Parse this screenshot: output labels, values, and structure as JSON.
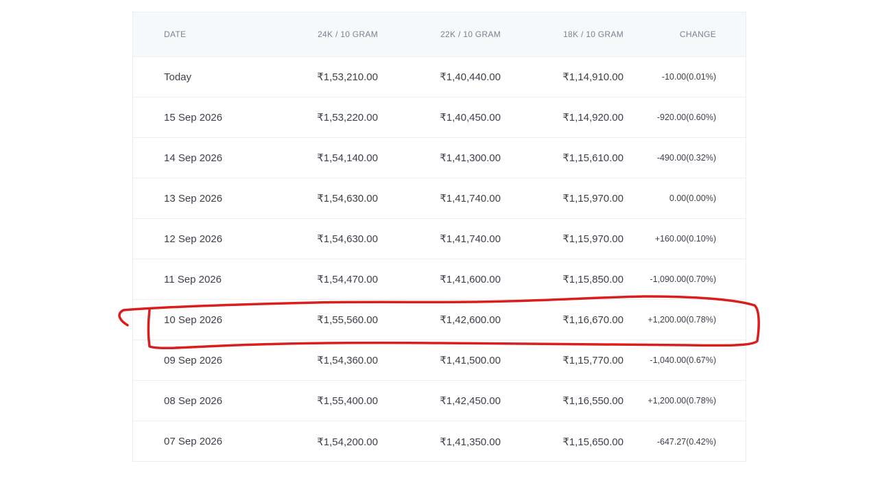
{
  "table": {
    "headers": {
      "date": "DATE",
      "k24": "24K / 10 GRAM",
      "k22": "22K / 10 GRAM",
      "k18": "18K / 10 GRAM",
      "change": "CHANGE"
    },
    "rows": [
      {
        "date": "Today",
        "k24": "₹1,53,210.00",
        "k22": "₹1,40,440.00",
        "k18": "₹1,14,910.00",
        "change": "-10.00(0.01%)",
        "direction": "down"
      },
      {
        "date": "15 Sep 2026",
        "k24": "₹1,53,220.00",
        "k22": "₹1,40,450.00",
        "k18": "₹1,14,920.00",
        "change": "-920.00(0.60%)",
        "direction": "down"
      },
      {
        "date": "14 Sep 2026",
        "k24": "₹1,54,140.00",
        "k22": "₹1,41,300.00",
        "k18": "₹1,15,610.00",
        "change": "-490.00(0.32%)",
        "direction": "down"
      },
      {
        "date": "13 Sep 2026",
        "k24": "₹1,54,630.00",
        "k22": "₹1,41,740.00",
        "k18": "₹1,15,970.00",
        "change": "0.00(0.00%)",
        "direction": "flat"
      },
      {
        "date": "12 Sep 2026",
        "k24": "₹1,54,630.00",
        "k22": "₹1,41,740.00",
        "k18": "₹1,15,970.00",
        "change": "+160.00(0.10%)",
        "direction": "up"
      },
      {
        "date": "11 Sep 2026",
        "k24": "₹1,54,470.00",
        "k22": "₹1,41,600.00",
        "k18": "₹1,15,850.00",
        "change": "-1,090.00(0.70%)",
        "direction": "down"
      },
      {
        "date": "10 Sep 2026",
        "k24": "₹1,55,560.00",
        "k22": "₹1,42,600.00",
        "k18": "₹1,16,670.00",
        "change": "+1,200.00(0.78%)",
        "direction": "up"
      },
      {
        "date": "09 Sep 2026",
        "k24": "₹1,54,360.00",
        "k22": "₹1,41,500.00",
        "k18": "₹1,15,770.00",
        "change": "-1,040.00(0.67%)",
        "direction": "down"
      },
      {
        "date": "08 Sep 2026",
        "k24": "₹1,55,400.00",
        "k22": "₹1,42,450.00",
        "k18": "₹1,16,550.00",
        "change": "+1,200.00(0.78%)",
        "direction": "up"
      },
      {
        "date": "07 Sep 2026",
        "k24": "₹1,54,200.00",
        "k22": "₹1,41,350.00",
        "k18": "₹1,15,650.00",
        "change": "-647.27(0.42%)",
        "direction": "down"
      }
    ]
  },
  "colors": {
    "negative": "#e8583c",
    "positive": "#1aa56b",
    "highlight_marker": "#d91e1e"
  },
  "annotation": {
    "type": "hand-drawn-red-outline",
    "highlighted_row_date": "10 Sep 2026"
  }
}
